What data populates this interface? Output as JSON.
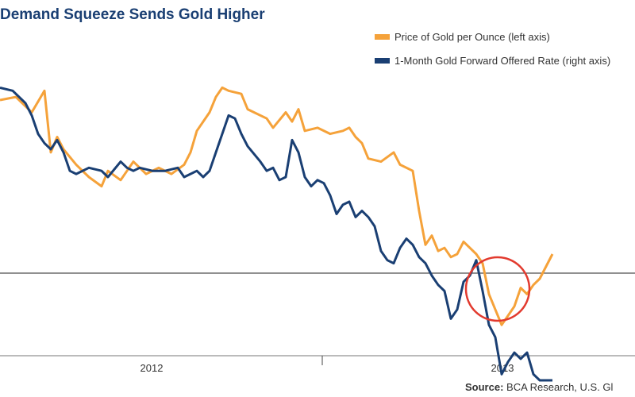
{
  "chart_data": {
    "type": "line",
    "title": "Demand Squeeze Sends Gold Higher",
    "xlabel": "",
    "ylabel": "",
    "x_ticks": [
      "2012",
      "2013"
    ],
    "grid": false,
    "legend": "top-right",
    "reference_line": "horizontal zero line for right axis",
    "series": [
      {
        "name": "Price of Gold per Ounce (left axis)",
        "color": "#f5a23a",
        "axis": "left",
        "points": [
          [
            0.0,
            0.83
          ],
          [
            0.025,
            0.84
          ],
          [
            0.05,
            0.79
          ],
          [
            0.07,
            0.86
          ],
          [
            0.08,
            0.66
          ],
          [
            0.09,
            0.71
          ],
          [
            0.1,
            0.67
          ],
          [
            0.12,
            0.62
          ],
          [
            0.14,
            0.58
          ],
          [
            0.16,
            0.55
          ],
          [
            0.17,
            0.6
          ],
          [
            0.19,
            0.57
          ],
          [
            0.2,
            0.6
          ],
          [
            0.21,
            0.63
          ],
          [
            0.23,
            0.59
          ],
          [
            0.25,
            0.61
          ],
          [
            0.27,
            0.59
          ],
          [
            0.29,
            0.62
          ],
          [
            0.3,
            0.66
          ],
          [
            0.31,
            0.73
          ],
          [
            0.33,
            0.79
          ],
          [
            0.34,
            0.84
          ],
          [
            0.35,
            0.87
          ],
          [
            0.36,
            0.86
          ],
          [
            0.38,
            0.85
          ],
          [
            0.39,
            0.8
          ],
          [
            0.4,
            0.79
          ],
          [
            0.42,
            0.77
          ],
          [
            0.43,
            0.74
          ],
          [
            0.45,
            0.79
          ],
          [
            0.46,
            0.76
          ],
          [
            0.47,
            0.8
          ],
          [
            0.48,
            0.73
          ],
          [
            0.5,
            0.74
          ],
          [
            0.52,
            0.72
          ],
          [
            0.54,
            0.73
          ],
          [
            0.55,
            0.74
          ],
          [
            0.56,
            0.71
          ],
          [
            0.57,
            0.69
          ],
          [
            0.58,
            0.64
          ],
          [
            0.6,
            0.63
          ],
          [
            0.62,
            0.66
          ],
          [
            0.63,
            0.62
          ],
          [
            0.65,
            0.6
          ],
          [
            0.66,
            0.47
          ],
          [
            0.67,
            0.36
          ],
          [
            0.68,
            0.39
          ],
          [
            0.69,
            0.34
          ],
          [
            0.7,
            0.35
          ],
          [
            0.71,
            0.32
          ],
          [
            0.72,
            0.33
          ],
          [
            0.73,
            0.37
          ],
          [
            0.74,
            0.35
          ],
          [
            0.75,
            0.33
          ],
          [
            0.76,
            0.3
          ],
          [
            0.77,
            0.2
          ],
          [
            0.78,
            0.15
          ],
          [
            0.79,
            0.1
          ],
          [
            0.8,
            0.13
          ],
          [
            0.81,
            0.16
          ],
          [
            0.82,
            0.22
          ],
          [
            0.83,
            0.2
          ],
          [
            0.84,
            0.23
          ],
          [
            0.85,
            0.25
          ],
          [
            0.86,
            0.29
          ],
          [
            0.87,
            0.33
          ]
        ]
      },
      {
        "name": "1-Month Gold Forward Offered Rate (right axis)",
        "color": "#1a3f73",
        "axis": "right",
        "points": [
          [
            0.0,
            0.87
          ],
          [
            0.02,
            0.86
          ],
          [
            0.04,
            0.82
          ],
          [
            0.05,
            0.78
          ],
          [
            0.06,
            0.72
          ],
          [
            0.07,
            0.69
          ],
          [
            0.08,
            0.67
          ],
          [
            0.09,
            0.7
          ],
          [
            0.1,
            0.66
          ],
          [
            0.11,
            0.6
          ],
          [
            0.12,
            0.59
          ],
          [
            0.14,
            0.61
          ],
          [
            0.16,
            0.6
          ],
          [
            0.17,
            0.58
          ],
          [
            0.19,
            0.63
          ],
          [
            0.2,
            0.61
          ],
          [
            0.21,
            0.6
          ],
          [
            0.22,
            0.61
          ],
          [
            0.24,
            0.6
          ],
          [
            0.26,
            0.6
          ],
          [
            0.28,
            0.61
          ],
          [
            0.29,
            0.58
          ],
          [
            0.3,
            0.59
          ],
          [
            0.31,
            0.6
          ],
          [
            0.32,
            0.58
          ],
          [
            0.33,
            0.6
          ],
          [
            0.34,
            0.66
          ],
          [
            0.35,
            0.72
          ],
          [
            0.36,
            0.78
          ],
          [
            0.37,
            0.77
          ],
          [
            0.38,
            0.72
          ],
          [
            0.39,
            0.68
          ],
          [
            0.41,
            0.63
          ],
          [
            0.42,
            0.6
          ],
          [
            0.43,
            0.61
          ],
          [
            0.44,
            0.57
          ],
          [
            0.45,
            0.58
          ],
          [
            0.46,
            0.7
          ],
          [
            0.47,
            0.66
          ],
          [
            0.48,
            0.58
          ],
          [
            0.49,
            0.55
          ],
          [
            0.5,
            0.57
          ],
          [
            0.51,
            0.56
          ],
          [
            0.52,
            0.52
          ],
          [
            0.53,
            0.46
          ],
          [
            0.54,
            0.49
          ],
          [
            0.55,
            0.5
          ],
          [
            0.56,
            0.45
          ],
          [
            0.57,
            0.47
          ],
          [
            0.58,
            0.45
          ],
          [
            0.59,
            0.42
          ],
          [
            0.6,
            0.34
          ],
          [
            0.61,
            0.31
          ],
          [
            0.62,
            0.3
          ],
          [
            0.63,
            0.35
          ],
          [
            0.64,
            0.38
          ],
          [
            0.65,
            0.36
          ],
          [
            0.66,
            0.32
          ],
          [
            0.67,
            0.3
          ],
          [
            0.68,
            0.26
          ],
          [
            0.69,
            0.23
          ],
          [
            0.7,
            0.21
          ],
          [
            0.71,
            0.12
          ],
          [
            0.72,
            0.15
          ],
          [
            0.73,
            0.24
          ],
          [
            0.74,
            0.26
          ],
          [
            0.75,
            0.31
          ],
          [
            0.76,
            0.21
          ],
          [
            0.77,
            0.1
          ],
          [
            0.78,
            0.06
          ],
          [
            0.79,
            -0.06
          ],
          [
            0.8,
            -0.02
          ],
          [
            0.81,
            0.01
          ],
          [
            0.82,
            -0.01
          ],
          [
            0.83,
            0.01
          ],
          [
            0.84,
            -0.06
          ],
          [
            0.85,
            -0.08
          ],
          [
            0.86,
            -0.08
          ],
          [
            0.87,
            -0.08
          ]
        ]
      }
    ]
  },
  "source": {
    "label": "Source:",
    "text": "BCA Research, U.S. Gl"
  }
}
